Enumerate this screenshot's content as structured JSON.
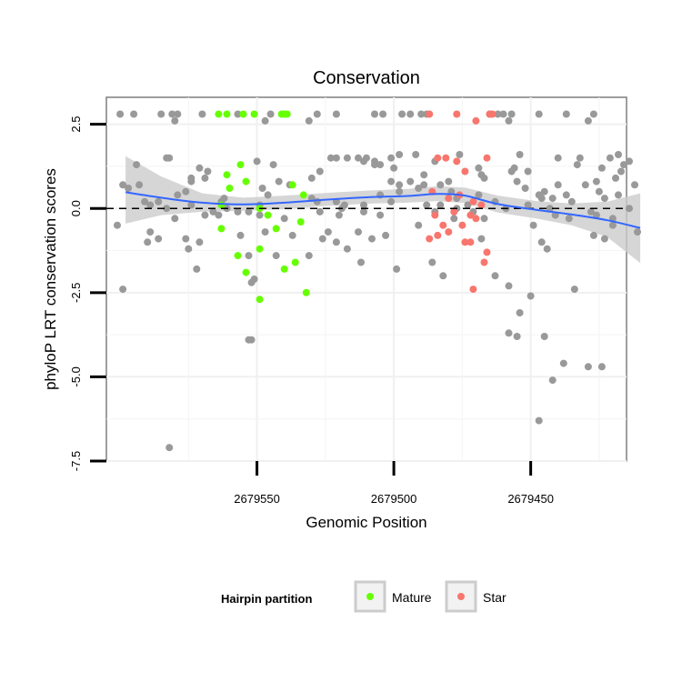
{
  "chart_data": {
    "type": "scatter",
    "title": "Conservation",
    "xlabel": "Genomic Position",
    "ylabel": "phyloP LRT conservation scores",
    "x_reversed": true,
    "xlim": [
      2679415,
      2679605
    ],
    "ylim": [
      -7.5,
      3.3
    ],
    "x_ticks": [
      2679550,
      2679500,
      2679450
    ],
    "x_tick_labels": [
      "2679550",
      "2679500",
      "2679450"
    ],
    "y_ticks": [
      2.5,
      0.0,
      -2.5,
      -5.0,
      -7.5
    ],
    "y_tick_labels": [
      "2.5",
      "0.0",
      "-2.5",
      "-5.0",
      "-7.5"
    ],
    "grid": true,
    "reference_line": {
      "y": 0,
      "style": "dashed"
    },
    "smooth": {
      "color": "#3366ff",
      "band_color": "#cccccc",
      "points": [
        {
          "x": 2679598,
          "y": 0.48,
          "lo": -0.45,
          "hi": 1.55
        },
        {
          "x": 2679585,
          "y": 0.32,
          "lo": -0.2,
          "hi": 0.95
        },
        {
          "x": 2679570,
          "y": 0.17,
          "lo": -0.1,
          "hi": 0.45
        },
        {
          "x": 2679555,
          "y": 0.12,
          "lo": -0.07,
          "hi": 0.32
        },
        {
          "x": 2679540,
          "y": 0.17,
          "lo": -0.02,
          "hi": 0.38
        },
        {
          "x": 2679525,
          "y": 0.26,
          "lo": 0.07,
          "hi": 0.46
        },
        {
          "x": 2679510,
          "y": 0.33,
          "lo": 0.14,
          "hi": 0.53
        },
        {
          "x": 2679495,
          "y": 0.37,
          "lo": 0.17,
          "hi": 0.58
        },
        {
          "x": 2679484,
          "y": 0.43,
          "lo": 0.22,
          "hi": 0.66
        },
        {
          "x": 2679474,
          "y": 0.38,
          "lo": 0.16,
          "hi": 0.62
        },
        {
          "x": 2679462,
          "y": 0.13,
          "lo": -0.12,
          "hi": 0.38
        },
        {
          "x": 2679448,
          "y": -0.04,
          "lo": -0.3,
          "hi": 0.22
        },
        {
          "x": 2679435,
          "y": -0.18,
          "lo": -0.5,
          "hi": 0.15
        },
        {
          "x": 2679422,
          "y": -0.35,
          "lo": -0.85,
          "hi": 0.2
        },
        {
          "x": 2679410,
          "y": -0.58,
          "lo": -1.62,
          "hi": 0.45
        }
      ]
    },
    "series": [
      {
        "name": "",
        "color": "#999999",
        "points": [
          [
            2679600,
            2.8
          ],
          [
            2679595,
            2.8
          ],
          [
            2679585,
            2.8
          ],
          [
            2679581,
            2.8
          ],
          [
            2679579,
            2.8
          ],
          [
            2679570,
            2.8
          ],
          [
            2679557,
            2.8
          ],
          [
            2679545,
            2.8
          ],
          [
            2679528,
            2.8
          ],
          [
            2679521,
            2.8
          ],
          [
            2679507,
            2.8
          ],
          [
            2679504,
            2.8
          ],
          [
            2679497,
            2.8
          ],
          [
            2679494,
            2.8
          ],
          [
            2679490,
            2.8
          ],
          [
            2679488,
            2.8
          ],
          [
            2679465,
            2.8
          ],
          [
            2679462,
            2.8
          ],
          [
            2679460,
            2.8
          ],
          [
            2679457,
            2.8
          ],
          [
            2679447,
            2.8
          ],
          [
            2679437,
            2.8
          ],
          [
            2679427,
            2.8
          ],
          [
            2679580,
            2.6
          ],
          [
            2679547,
            2.6
          ],
          [
            2679531,
            2.6
          ],
          [
            2679458,
            2.6
          ],
          [
            2679429,
            2.6
          ],
          [
            2679498,
            1.6
          ],
          [
            2679492,
            1.6
          ],
          [
            2679476,
            1.6
          ],
          [
            2679454,
            1.6
          ],
          [
            2679418,
            1.6
          ],
          [
            2679583,
            1.5
          ],
          [
            2679582,
            1.5
          ],
          [
            2679523,
            1.5
          ],
          [
            2679521,
            1.5
          ],
          [
            2679517,
            1.5
          ],
          [
            2679513,
            1.5
          ],
          [
            2679510,
            1.5
          ],
          [
            2679501,
            1.5
          ],
          [
            2679440,
            1.5
          ],
          [
            2679432,
            1.5
          ],
          [
            2679421,
            1.5
          ],
          [
            2679550,
            1.4
          ],
          [
            2679511,
            1.4
          ],
          [
            2679507,
            1.4
          ],
          [
            2679485,
            1.4
          ],
          [
            2679414,
            1.4
          ],
          [
            2679594,
            1.3
          ],
          [
            2679544,
            1.3
          ],
          [
            2679507,
            1.3
          ],
          [
            2679505,
            1.3
          ],
          [
            2679433,
            1.3
          ],
          [
            2679416,
            1.3
          ],
          [
            2679571,
            1.2
          ],
          [
            2679500,
            1.2
          ],
          [
            2679469,
            1.2
          ],
          [
            2679456,
            1.2
          ],
          [
            2679424,
            1.2
          ],
          [
            2679568,
            1.1
          ],
          [
            2679527,
            1.1
          ],
          [
            2679457,
            1.1
          ],
          [
            2679451,
            1.1
          ],
          [
            2679417,
            1.1
          ],
          [
            2679489,
            1.0
          ],
          [
            2679468,
            1.0
          ],
          [
            2679574,
            0.9
          ],
          [
            2679569,
            0.9
          ],
          [
            2679530,
            0.9
          ],
          [
            2679467,
            0.9
          ],
          [
            2679419,
            0.9
          ],
          [
            2679574,
            0.8
          ],
          [
            2679542,
            0.8
          ],
          [
            2679501,
            0.8
          ],
          [
            2679494,
            0.8
          ],
          [
            2679480,
            0.8
          ],
          [
            2679455,
            0.8
          ],
          [
            2679426,
            0.8
          ],
          [
            2679599,
            0.7
          ],
          [
            2679593,
            0.7
          ],
          [
            2679538,
            0.7
          ],
          [
            2679498,
            0.7
          ],
          [
            2679489,
            0.7
          ],
          [
            2679483,
            0.7
          ],
          [
            2679440,
            0.7
          ],
          [
            2679430,
            0.7
          ],
          [
            2679412,
            0.7
          ],
          [
            2679597,
            0.6
          ],
          [
            2679548,
            0.6
          ],
          [
            2679491,
            0.6
          ],
          [
            2679452,
            0.6
          ],
          [
            2679576,
            0.5
          ],
          [
            2679498,
            0.5
          ],
          [
            2679479,
            0.5
          ],
          [
            2679445,
            0.5
          ],
          [
            2679425,
            0.5
          ],
          [
            2679579,
            0.4
          ],
          [
            2679546,
            0.4
          ],
          [
            2679505,
            0.4
          ],
          [
            2679469,
            0.4
          ],
          [
            2679447,
            0.4
          ],
          [
            2679437,
            0.4
          ],
          [
            2679418,
            0.4
          ],
          [
            2679562,
            0.3
          ],
          [
            2679530,
            0.3
          ],
          [
            2679477,
            0.3
          ],
          [
            2679446,
            0.3
          ],
          [
            2679442,
            0.3
          ],
          [
            2679423,
            0.3
          ],
          [
            2679591,
            0.2
          ],
          [
            2679586,
            0.2
          ],
          [
            2679563,
            0.2
          ],
          [
            2679528,
            0.2
          ],
          [
            2679521,
            0.2
          ],
          [
            2679501,
            0.2
          ],
          [
            2679463,
            0.2
          ],
          [
            2679435,
            0.2
          ],
          [
            2679589,
            0.1
          ],
          [
            2679574,
            0.1
          ],
          [
            2679549,
            0.1
          ],
          [
            2679518,
            0.1
          ],
          [
            2679511,
            0.1
          ],
          [
            2679488,
            0.1
          ],
          [
            2679483,
            0.1
          ],
          [
            2679473,
            0.1
          ],
          [
            2679451,
            0.1
          ],
          [
            2679583,
            0.0
          ],
          [
            2679561,
            0.0
          ],
          [
            2679519,
            0.0
          ],
          [
            2679477,
            0.0
          ],
          [
            2679459,
            0.0
          ],
          [
            2679443,
            0.0
          ],
          [
            2679414,
            0.0
          ],
          [
            2679566,
            -0.1
          ],
          [
            2679557,
            -0.1
          ],
          [
            2679553,
            -0.1
          ],
          [
            2679527,
            -0.1
          ],
          [
            2679511,
            -0.1
          ],
          [
            2679485,
            -0.1
          ],
          [
            2679471,
            -0.1
          ],
          [
            2679428,
            -0.1
          ],
          [
            2679569,
            -0.2
          ],
          [
            2679564,
            -0.2
          ],
          [
            2679549,
            -0.2
          ],
          [
            2679520,
            -0.2
          ],
          [
            2679505,
            -0.2
          ],
          [
            2679441,
            -0.2
          ],
          [
            2679426,
            -0.2
          ],
          [
            2679580,
            -0.3
          ],
          [
            2679540,
            -0.3
          ],
          [
            2679478,
            -0.3
          ],
          [
            2679467,
            -0.3
          ],
          [
            2679436,
            -0.3
          ],
          [
            2679420,
            -0.3
          ],
          [
            2679601,
            -0.5
          ],
          [
            2679491,
            -0.5
          ],
          [
            2679449,
            -0.5
          ],
          [
            2679420,
            -0.5
          ],
          [
            2679589,
            -0.7
          ],
          [
            2679547,
            -0.7
          ],
          [
            2679524,
            -0.7
          ],
          [
            2679513,
            -0.7
          ],
          [
            2679411,
            -0.7
          ],
          [
            2679556,
            -0.8
          ],
          [
            2679537,
            -0.8
          ],
          [
            2679503,
            -0.8
          ],
          [
            2679427,
            -0.8
          ],
          [
            2679586,
            -0.9
          ],
          [
            2679576,
            -0.9
          ],
          [
            2679526,
            -0.9
          ],
          [
            2679508,
            -0.9
          ],
          [
            2679468,
            -0.9
          ],
          [
            2679423,
            -0.9
          ],
          [
            2679590,
            -1.0
          ],
          [
            2679571,
            -1.0
          ],
          [
            2679521,
            -1.0
          ],
          [
            2679446,
            -1.0
          ],
          [
            2679575,
            -1.2
          ],
          [
            2679517,
            -1.2
          ],
          [
            2679444,
            -1.2
          ],
          [
            2679553,
            -1.4
          ],
          [
            2679543,
            -1.4
          ],
          [
            2679531,
            -1.4
          ],
          [
            2679512,
            -1.6
          ],
          [
            2679486,
            -1.6
          ],
          [
            2679572,
            -1.8
          ],
          [
            2679499,
            -1.8
          ],
          [
            2679482,
            -2.0
          ],
          [
            2679463,
            -2.0
          ],
          [
            2679551,
            -2.1
          ],
          [
            2679552,
            -2.2
          ],
          [
            2679458,
            -2.3
          ],
          [
            2679599,
            -2.4
          ],
          [
            2679434,
            -2.4
          ],
          [
            2679450,
            -2.6
          ],
          [
            2679454,
            -3.1
          ],
          [
            2679458,
            -3.7
          ],
          [
            2679455,
            -3.8
          ],
          [
            2679445,
            -3.8
          ],
          [
            2679553,
            -3.9
          ],
          [
            2679552,
            -3.9
          ],
          [
            2679438,
            -4.6
          ],
          [
            2679429,
            -4.7
          ],
          [
            2679424,
            -4.7
          ],
          [
            2679442,
            -5.1
          ],
          [
            2679447,
            -6.3
          ],
          [
            2679582,
            -7.1
          ]
        ]
      },
      {
        "name": "Mature",
        "color": "#66ff00",
        "points": [
          [
            2679564,
            2.8
          ],
          [
            2679561,
            2.8
          ],
          [
            2679555,
            2.8
          ],
          [
            2679551,
            2.8
          ],
          [
            2679541,
            2.8
          ],
          [
            2679540,
            2.8
          ],
          [
            2679539,
            2.8
          ],
          [
            2679556,
            1.3
          ],
          [
            2679561,
            1.0
          ],
          [
            2679554,
            0.8
          ],
          [
            2679537,
            0.7
          ],
          [
            2679560,
            0.6
          ],
          [
            2679533,
            0.4
          ],
          [
            2679563,
            0.1
          ],
          [
            2679549,
            0.0
          ],
          [
            2679546,
            -0.2
          ],
          [
            2679534,
            -0.4
          ],
          [
            2679563,
            -0.6
          ],
          [
            2679543,
            -0.6
          ],
          [
            2679549,
            -1.2
          ],
          [
            2679557,
            -1.4
          ],
          [
            2679536,
            -1.6
          ],
          [
            2679554,
            -1.9
          ],
          [
            2679540,
            -1.8
          ],
          [
            2679532,
            -2.5
          ],
          [
            2679549,
            -2.7
          ]
        ]
      },
      {
        "name": "Star",
        "color": "#f8766d",
        "points": [
          [
            2679487,
            2.8
          ],
          [
            2679477,
            2.8
          ],
          [
            2679465,
            2.8
          ],
          [
            2679464,
            2.8
          ],
          [
            2679470,
            2.6
          ],
          [
            2679484,
            1.5
          ],
          [
            2679481,
            1.5
          ],
          [
            2679477,
            1.4
          ],
          [
            2679466,
            1.5
          ],
          [
            2679474,
            1.1
          ],
          [
            2679486,
            0.5
          ],
          [
            2679480,
            0.3
          ],
          [
            2679476,
            0.4
          ],
          [
            2679471,
            0.2
          ],
          [
            2679468,
            0.1
          ],
          [
            2679485,
            -0.2
          ],
          [
            2679478,
            -0.1
          ],
          [
            2679472,
            -0.2
          ],
          [
            2679470,
            -0.3
          ],
          [
            2679482,
            -0.5
          ],
          [
            2679475,
            -0.5
          ],
          [
            2679487,
            -0.9
          ],
          [
            2679484,
            -0.8
          ],
          [
            2679480,
            -0.7
          ],
          [
            2679474,
            -1.0
          ],
          [
            2679472,
            -1.0
          ],
          [
            2679466,
            -1.3
          ],
          [
            2679467,
            -1.6
          ],
          [
            2679471,
            -2.4
          ]
        ]
      }
    ],
    "legend": {
      "title": "Hairpin partition",
      "placement": "bottom",
      "entries": [
        {
          "label": "Mature",
          "color": "#66ff00"
        },
        {
          "label": "Star",
          "color": "#f8766d"
        }
      ]
    }
  }
}
